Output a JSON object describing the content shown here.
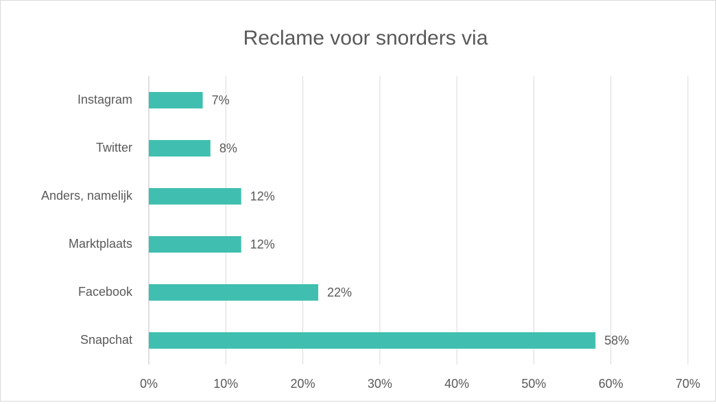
{
  "chart_data": {
    "type": "bar",
    "orientation": "horizontal",
    "title": "Reclame voor snorders via",
    "categories": [
      "Instagram",
      "Twitter",
      "Anders, namelijk",
      "Marktplaats",
      "Facebook",
      "Snapchat"
    ],
    "values": [
      7,
      8,
      12,
      12,
      22,
      58
    ],
    "value_labels": [
      "7%",
      "8%",
      "12%",
      "12%",
      "22%",
      "58%"
    ],
    "color": "#40bfb0",
    "xlim": [
      0,
      70
    ],
    "xticks": [
      {
        "value": 0,
        "label": "0%"
      },
      {
        "value": 10,
        "label": "10%"
      },
      {
        "value": 20,
        "label": "20%"
      },
      {
        "value": 30,
        "label": "30%"
      },
      {
        "value": 40,
        "label": "40%"
      },
      {
        "value": 50,
        "label": "50%"
      },
      {
        "value": 60,
        "label": "60%"
      },
      {
        "value": 70,
        "label": "70%"
      }
    ],
    "grid": true
  }
}
